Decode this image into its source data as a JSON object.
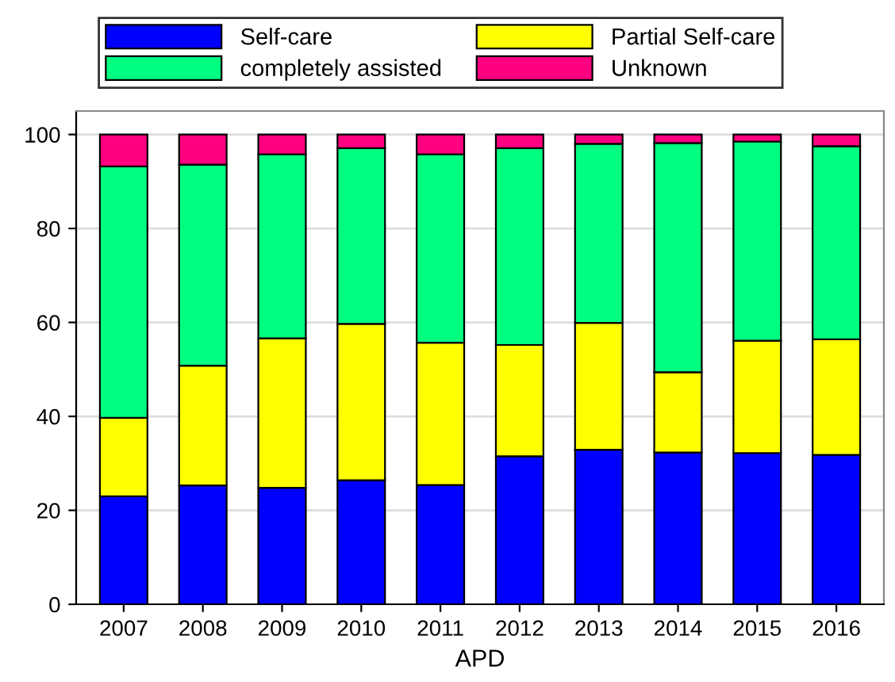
{
  "chart_data": {
    "type": "bar",
    "stacked": true,
    "xlabel": "APD",
    "categories": [
      "2007",
      "2008",
      "2009",
      "2010",
      "2011",
      "2012",
      "2013",
      "2014",
      "2015",
      "2016"
    ],
    "series": [
      {
        "name": "Self-care",
        "color": "#0000ff",
        "values": [
          23,
          25.3,
          24.8,
          26.4,
          25.4,
          31.5,
          32.9,
          32.3,
          32.2,
          31.8
        ]
      },
      {
        "name": "Partial Self-care",
        "color": "#ffff00",
        "values": [
          16.7,
          25.5,
          31.8,
          33.3,
          30.3,
          23.7,
          27.0,
          17.1,
          23.9,
          24.6
        ]
      },
      {
        "name": "completely assisted",
        "color": "#00ff80",
        "values": [
          53.5,
          42.8,
          39.2,
          37.4,
          40.1,
          41.9,
          38.1,
          48.8,
          42.4,
          41.1
        ]
      },
      {
        "name": "Unknown",
        "color": "#ff0080",
        "values": [
          6.8,
          6.4,
          4.2,
          2.9,
          4.2,
          2.9,
          2.0,
          1.8,
          1.5,
          2.5
        ]
      }
    ],
    "ylim": [
      0,
      105
    ],
    "yticks": [
      0,
      20,
      40,
      60,
      80,
      100
    ],
    "grid": "y",
    "legend": "top"
  }
}
